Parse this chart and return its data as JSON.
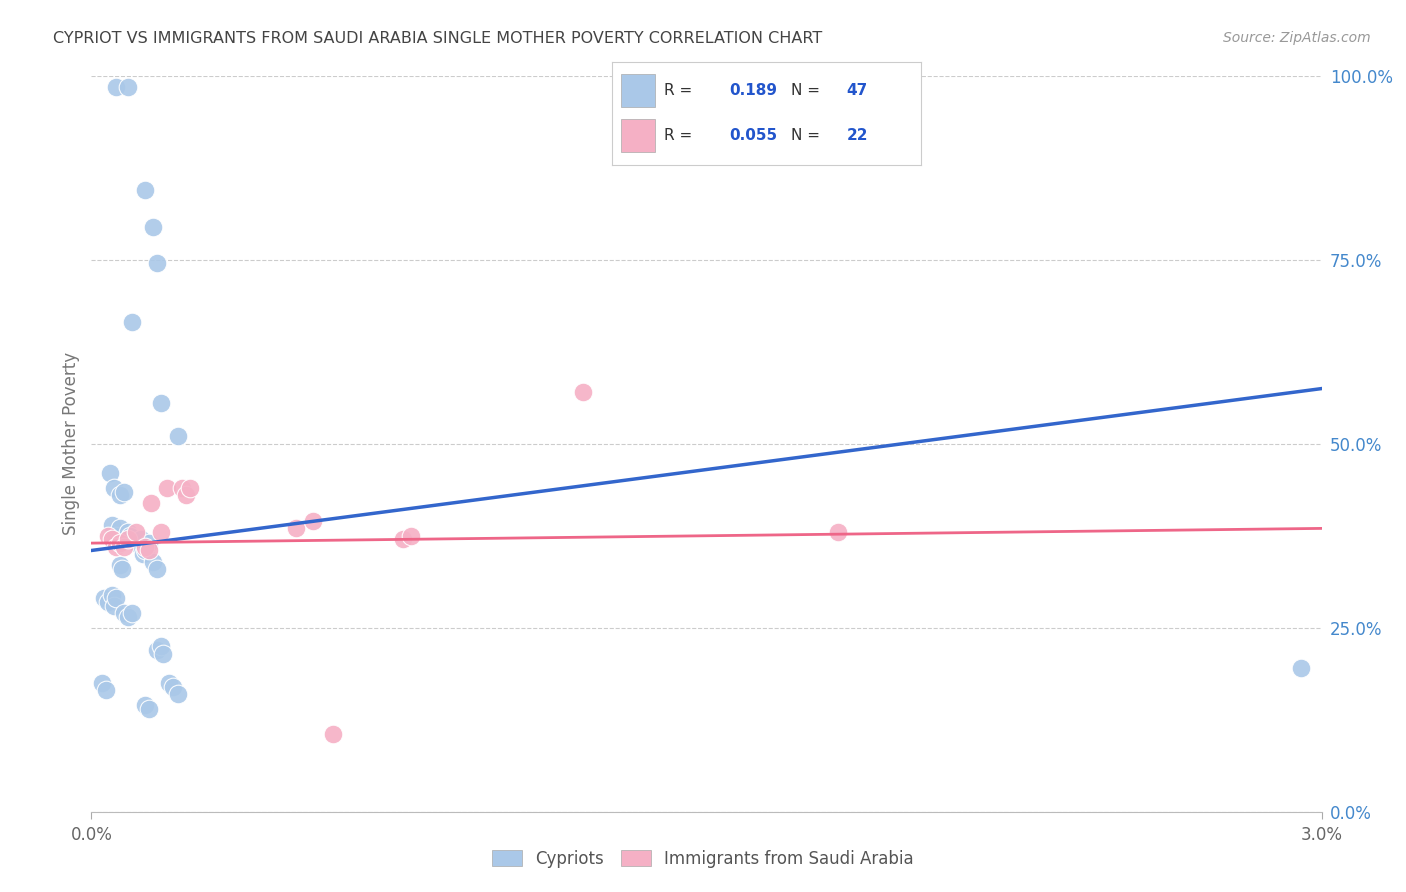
{
  "title": "CYPRIOT VS IMMIGRANTS FROM SAUDI ARABIA SINGLE MOTHER POVERTY CORRELATION CHART",
  "source": "Source: ZipAtlas.com",
  "ylabel": "Single Mother Poverty",
  "ytick_labels": [
    "0.0%",
    "25.0%",
    "50.0%",
    "75.0%",
    "100.0%"
  ],
  "ytick_vals": [
    0.0,
    0.25,
    0.5,
    0.75,
    1.0
  ],
  "xtick_labels": [
    "0.0%",
    "3.0%"
  ],
  "xtick_vals": [
    0.0,
    0.03
  ],
  "xlim": [
    0.0,
    0.03
  ],
  "ylim": [
    0.0,
    1.0
  ],
  "legend_labels_bottom": [
    "Cypriots",
    "Immigrants from Saudi Arabia"
  ],
  "R_cypriot": "0.189",
  "N_cypriot": "47",
  "R_saudi": "0.055",
  "N_saudi": "22",
  "cypriot_color": "#aac8e8",
  "saudi_color": "#f5b0c5",
  "cypriot_line_color": "#3366cc",
  "saudi_line_color": "#ee6688",
  "title_color": "#444444",
  "source_color": "#999999",
  "ytick_color": "#4488cc",
  "xtick_color": "#666666",
  "grid_color": "#cccccc",
  "bg_color": "#ffffff",
  "cyp_x": [
    0.0006,
    0.0009,
    0.0013,
    0.0015,
    0.0016,
    0.001,
    0.0017,
    0.0021,
    0.00045,
    0.00055,
    0.0007,
    0.0008,
    0.0005,
    0.0006,
    0.0007,
    0.0008,
    0.0009,
    0.00095,
    0.0011,
    0.0012,
    0.00125,
    0.0013,
    0.00135,
    0.0014,
    0.0007,
    0.00075,
    0.0015,
    0.0016,
    0.0003,
    0.0004,
    0.0005,
    0.00055,
    0.0006,
    0.0008,
    0.0009,
    0.001,
    0.0016,
    0.0017,
    0.00175,
    0.0019,
    0.002,
    0.0021,
    0.0013,
    0.0014,
    0.0295,
    0.00025,
    0.00035
  ],
  "cyp_y": [
    0.985,
    0.985,
    0.845,
    0.795,
    0.745,
    0.665,
    0.555,
    0.51,
    0.46,
    0.44,
    0.43,
    0.435,
    0.39,
    0.375,
    0.385,
    0.37,
    0.38,
    0.375,
    0.365,
    0.37,
    0.35,
    0.355,
    0.36,
    0.365,
    0.335,
    0.33,
    0.34,
    0.33,
    0.29,
    0.285,
    0.295,
    0.28,
    0.29,
    0.27,
    0.265,
    0.27,
    0.22,
    0.225,
    0.215,
    0.175,
    0.17,
    0.16,
    0.145,
    0.14,
    0.195,
    0.175,
    0.165
  ],
  "sau_x": [
    0.0004,
    0.0005,
    0.0006,
    0.0007,
    0.0008,
    0.0009,
    0.0011,
    0.0013,
    0.0014,
    0.00145,
    0.0017,
    0.00185,
    0.0022,
    0.0023,
    0.0024,
    0.005,
    0.0054,
    0.0076,
    0.0078,
    0.012,
    0.0182,
    0.0059
  ],
  "sau_y": [
    0.375,
    0.37,
    0.36,
    0.365,
    0.36,
    0.37,
    0.38,
    0.36,
    0.355,
    0.42,
    0.38,
    0.44,
    0.44,
    0.43,
    0.44,
    0.385,
    0.395,
    0.37,
    0.375,
    0.57,
    0.38,
    0.105
  ],
  "cyp_line_x": [
    0.0,
    0.03
  ],
  "cyp_line_y": [
    0.355,
    0.575
  ],
  "sau_line_x": [
    0.0,
    0.03
  ],
  "sau_line_y": [
    0.365,
    0.385
  ]
}
